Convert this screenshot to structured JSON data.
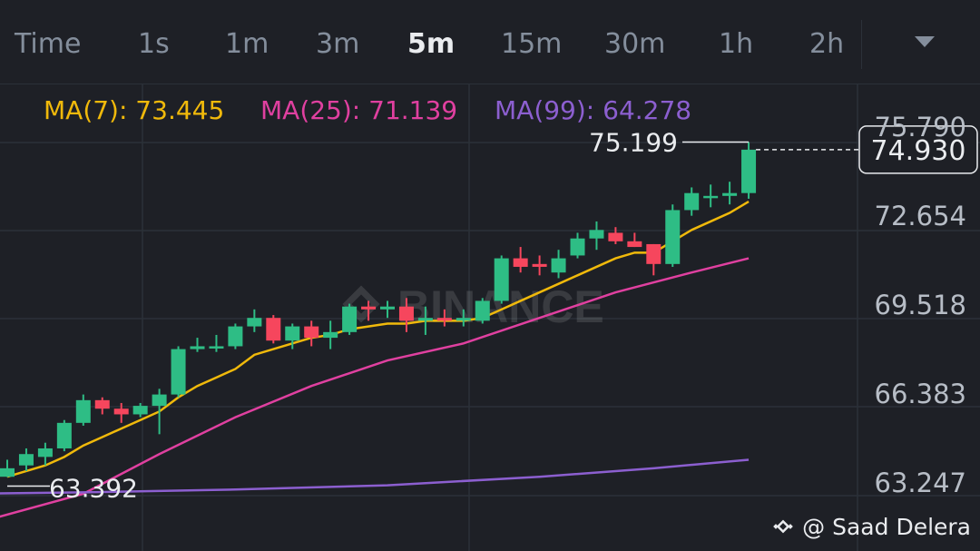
{
  "timeframes": [
    "Time",
    "1s",
    "1m",
    "3m",
    "5m",
    "15m",
    "30m",
    "1h",
    "2h"
  ],
  "active_timeframe": "5m",
  "dropdown_icon": "chevron-down-icon",
  "watermark": "BINANCE",
  "credit": "@ Saad Delera",
  "colors": {
    "background": "#1e2026",
    "up": "#2ebd85",
    "down": "#f6465d",
    "ma7": "#f0b90b",
    "ma25": "#e040a0",
    "ma99": "#8c5fd0"
  },
  "chart_data": {
    "type": "candlestick",
    "ma_labels": [
      {
        "name": "MA(7)",
        "value": "73.445"
      },
      {
        "name": "MA(25)",
        "value": "71.139"
      },
      {
        "name": "MA(99)",
        "value": "64.278"
      }
    ],
    "y_ticks": [
      "75.790",
      "72.654",
      "69.518",
      "66.383",
      "63.247"
    ],
    "y_tick_values": [
      75.79,
      72.654,
      69.518,
      66.383,
      63.247
    ],
    "current_price": "74.930",
    "high_marker": "75.199",
    "low_marker": "63.392",
    "candles": [
      {
        "o": 63.4,
        "h": 64.0,
        "l": 63.39,
        "c": 63.7
      },
      {
        "o": 63.8,
        "h": 64.4,
        "l": 63.6,
        "c": 64.2
      },
      {
        "o": 64.1,
        "h": 64.6,
        "l": 63.8,
        "c": 64.4
      },
      {
        "o": 64.4,
        "h": 65.4,
        "l": 64.3,
        "c": 65.3
      },
      {
        "o": 65.3,
        "h": 66.3,
        "l": 65.2,
        "c": 66.1
      },
      {
        "o": 66.1,
        "h": 66.2,
        "l": 65.6,
        "c": 65.8
      },
      {
        "o": 65.8,
        "h": 66.0,
        "l": 65.3,
        "c": 65.6
      },
      {
        "o": 65.6,
        "h": 66.0,
        "l": 65.5,
        "c": 65.9
      },
      {
        "o": 65.9,
        "h": 66.5,
        "l": 64.9,
        "c": 66.3
      },
      {
        "o": 66.3,
        "h": 68.0,
        "l": 66.2,
        "c": 67.9
      },
      {
        "o": 67.9,
        "h": 68.3,
        "l": 67.8,
        "c": 68.0
      },
      {
        "o": 68.0,
        "h": 68.4,
        "l": 67.8,
        "c": 68.0
      },
      {
        "o": 68.0,
        "h": 68.8,
        "l": 67.9,
        "c": 68.7
      },
      {
        "o": 68.7,
        "h": 69.3,
        "l": 68.5,
        "c": 69.0
      },
      {
        "o": 69.0,
        "h": 69.1,
        "l": 68.1,
        "c": 68.2
      },
      {
        "o": 68.2,
        "h": 68.8,
        "l": 67.9,
        "c": 68.7
      },
      {
        "o": 68.7,
        "h": 68.9,
        "l": 68.0,
        "c": 68.3
      },
      {
        "o": 68.3,
        "h": 68.9,
        "l": 67.9,
        "c": 68.5
      },
      {
        "o": 68.5,
        "h": 69.5,
        "l": 68.4,
        "c": 69.4
      },
      {
        "o": 69.4,
        "h": 69.6,
        "l": 68.9,
        "c": 69.3
      },
      {
        "o": 69.3,
        "h": 69.6,
        "l": 69.0,
        "c": 69.4
      },
      {
        "o": 69.4,
        "h": 69.7,
        "l": 68.5,
        "c": 68.9
      },
      {
        "o": 68.9,
        "h": 69.4,
        "l": 68.4,
        "c": 69.0
      },
      {
        "o": 69.0,
        "h": 69.3,
        "l": 68.7,
        "c": 68.9
      },
      {
        "o": 68.9,
        "h": 69.3,
        "l": 68.7,
        "c": 69.0
      },
      {
        "o": 68.9,
        "h": 69.7,
        "l": 68.8,
        "c": 69.6
      },
      {
        "o": 69.6,
        "h": 71.2,
        "l": 69.5,
        "c": 71.1
      },
      {
        "o": 71.1,
        "h": 71.5,
        "l": 70.6,
        "c": 70.8
      },
      {
        "o": 70.9,
        "h": 71.2,
        "l": 70.5,
        "c": 70.8
      },
      {
        "o": 70.6,
        "h": 71.4,
        "l": 70.4,
        "c": 71.1
      },
      {
        "o": 71.2,
        "h": 72.0,
        "l": 71.1,
        "c": 71.8
      },
      {
        "o": 71.8,
        "h": 72.4,
        "l": 71.4,
        "c": 72.1
      },
      {
        "o": 72.0,
        "h": 72.2,
        "l": 71.6,
        "c": 71.7
      },
      {
        "o": 71.7,
        "h": 72.0,
        "l": 71.5,
        "c": 71.5
      },
      {
        "o": 71.6,
        "h": 71.6,
        "l": 70.5,
        "c": 70.9
      },
      {
        "o": 70.9,
        "h": 73.0,
        "l": 70.8,
        "c": 72.8
      },
      {
        "o": 72.8,
        "h": 73.6,
        "l": 72.6,
        "c": 73.4
      },
      {
        "o": 73.3,
        "h": 73.7,
        "l": 72.9,
        "c": 73.3
      },
      {
        "o": 73.3,
        "h": 73.8,
        "l": 73.0,
        "c": 73.4
      },
      {
        "o": 73.4,
        "h": 75.199,
        "l": 73.2,
        "c": 74.93
      }
    ],
    "ma7": [
      63.4,
      63.6,
      63.8,
      64.1,
      64.5,
      64.8,
      65.1,
      65.4,
      65.7,
      66.2,
      66.6,
      66.9,
      67.2,
      67.7,
      67.9,
      68.1,
      68.3,
      68.4,
      68.6,
      68.7,
      68.8,
      68.8,
      68.9,
      68.9,
      68.9,
      69.0,
      69.3,
      69.6,
      69.9,
      70.2,
      70.5,
      70.8,
      71.1,
      71.3,
      71.3,
      71.7,
      72.1,
      72.4,
      72.7,
      73.1
    ],
    "ma25": [
      [
        -2,
        61.7
      ],
      [
        4,
        62.8
      ],
      [
        8,
        64.2
      ],
      [
        12,
        65.5
      ],
      [
        16,
        66.6
      ],
      [
        20,
        67.5
      ],
      [
        24,
        68.1
      ],
      [
        28,
        69.0
      ],
      [
        32,
        69.9
      ],
      [
        36,
        70.6
      ],
      [
        39,
        71.1
      ]
    ],
    "ma99": [
      [
        -8,
        62.75
      ],
      [
        4,
        62.85
      ],
      [
        12,
        62.95
      ],
      [
        20,
        63.1
      ],
      [
        28,
        63.4
      ],
      [
        34,
        63.7
      ],
      [
        39,
        64.0
      ]
    ]
  }
}
